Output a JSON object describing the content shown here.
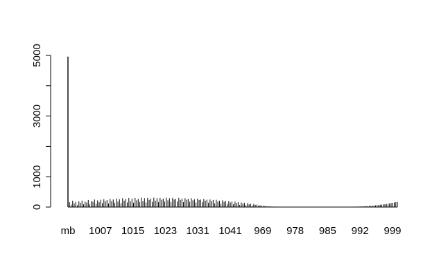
{
  "chart_data": {
    "type": "bar",
    "title": "",
    "xlabel": "",
    "ylabel": "",
    "ylim": [
      0,
      5000
    ],
    "y_ticks": [
      0,
      1000,
      3000,
      5000
    ],
    "y_tick_labels": [
      "0",
      "1000",
      "3000",
      "5000"
    ],
    "x_tick_labels": [
      "mb",
      "1007",
      "1015",
      "1023",
      "1031",
      "1041",
      "969",
      "978",
      "985",
      "992",
      "999"
    ],
    "bar_color": "#000000",
    "series": [
      {
        "values": [
          4960,
          160,
          80,
          210,
          120,
          170,
          60,
          190,
          140,
          210,
          90,
          180,
          150,
          230,
          100,
          200,
          170,
          250,
          110,
          220,
          160,
          240,
          130,
          260,
          190,
          230,
          120,
          270,
          200,
          250,
          140,
          280,
          180,
          260,
          130,
          290,
          210,
          270,
          150,
          300,
          190,
          280,
          140,
          300,
          220,
          270,
          160,
          310,
          200,
          290,
          150,
          300,
          230,
          280,
          170,
          310,
          210,
          290,
          160,
          300,
          240,
          280,
          180,
          310,
          220,
          290,
          170,
          300,
          250,
          270,
          180,
          300,
          230,
          280,
          160,
          290,
          240,
          270,
          170,
          290,
          220,
          260,
          150,
          280,
          230,
          250,
          160,
          270,
          210,
          240,
          140,
          250,
          200,
          230,
          120,
          240,
          180,
          210,
          110,
          220,
          170,
          200,
          100,
          200,
          150,
          180,
          90,
          180,
          130,
          160,
          70,
          150,
          110,
          140,
          60,
          130,
          90,
          110,
          50,
          100,
          70,
          80,
          40,
          60,
          50,
          40,
          30,
          30,
          25,
          20,
          20,
          15,
          15,
          12,
          12,
          10,
          10,
          8,
          8,
          6,
          6,
          6,
          5,
          5,
          4,
          4,
          4,
          3,
          3,
          3,
          3,
          3,
          3,
          3,
          3,
          3,
          3,
          3,
          3,
          3,
          3,
          3,
          3,
          3,
          3,
          3,
          3,
          3,
          3,
          3,
          3,
          4,
          4,
          4,
          5,
          5,
          5,
          6,
          6,
          8,
          8,
          10,
          10,
          12,
          12,
          15,
          15,
          18,
          20,
          22,
          25,
          28,
          30,
          35,
          40,
          45,
          50,
          55,
          60,
          70,
          75,
          80,
          90,
          95,
          100,
          110,
          120,
          130,
          140,
          150,
          160,
          170
        ]
      }
    ]
  }
}
